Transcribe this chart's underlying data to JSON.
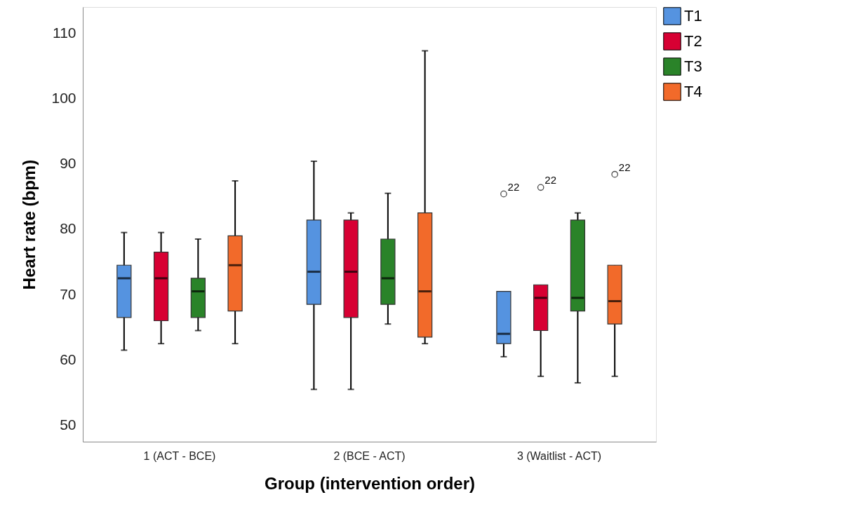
{
  "chart_data": {
    "type": "box",
    "xlabel": "Group (intervention order)",
    "ylabel": "Heart rate (bpm)",
    "categories": [
      "1 (ACT - BCE)",
      "2 (BCE - ACT)",
      "3 (Waitlist - ACT)"
    ],
    "ylim": [
      47.5,
      114
    ],
    "yticks": [
      50,
      60,
      70,
      80,
      90,
      100,
      110
    ],
    "grid": false,
    "legend": "top right",
    "series": [
      {
        "name": "T1",
        "color": "#5593e0",
        "boxes": [
          {
            "low": 61.5,
            "q1": 66.5,
            "median": 72.5,
            "q3": 74.5,
            "high": 79.5
          },
          {
            "low": 55.5,
            "q1": 68.5,
            "median": 73.5,
            "q3": 81.4,
            "high": 90.4
          },
          {
            "low": 60.5,
            "q1": 62.5,
            "median": 64,
            "q3": 70.5,
            "high": 70.5,
            "outliers": [
              85.4
            ]
          }
        ]
      },
      {
        "name": "T2",
        "color": "#d70033",
        "boxes": [
          {
            "low": 62.5,
            "q1": 66,
            "median": 72.5,
            "q3": 76.5,
            "high": 79.5
          },
          {
            "low": 55.5,
            "q1": 66.5,
            "median": 73.5,
            "q3": 81.4,
            "high": 82.5
          },
          {
            "low": 57.5,
            "q1": 64.5,
            "median": 69.5,
            "q3": 71.5,
            "high": 71.5,
            "outliers": [
              86.4
            ]
          }
        ]
      },
      {
        "name": "T3",
        "color": "#2a8329",
        "boxes": [
          {
            "low": 64.5,
            "q1": 66.5,
            "median": 70.5,
            "q3": 72.5,
            "high": 78.5
          },
          {
            "low": 65.5,
            "q1": 68.5,
            "median": 72.5,
            "q3": 78.5,
            "high": 85.5
          },
          {
            "low": 56.5,
            "q1": 67.5,
            "median": 69.5,
            "q3": 81.4,
            "high": 82.5
          }
        ]
      },
      {
        "name": "T4",
        "color": "#f26a2a",
        "boxes": [
          {
            "low": 62.5,
            "q1": 67.5,
            "median": 74.5,
            "q3": 79,
            "high": 87.4
          },
          {
            "low": 62.5,
            "q1": 63.5,
            "median": 70.5,
            "q3": 82.5,
            "high": 107.3
          },
          {
            "low": 57.5,
            "q1": 65.5,
            "median": 69,
            "q3": 74.5,
            "high": 74.5,
            "outliers": [
              88.4
            ]
          }
        ]
      }
    ],
    "annotations": [
      "22",
      "22",
      "22"
    ]
  }
}
